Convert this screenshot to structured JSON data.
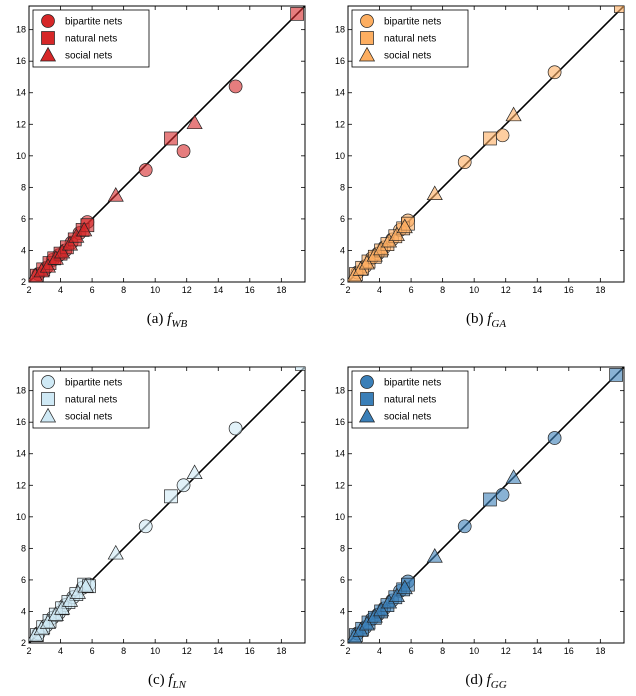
{
  "chart_data": [
    {
      "type": "scatter",
      "caption": {
        "label": "(a)",
        "fn": "f",
        "sub": "WB"
      },
      "xlim": [
        2,
        19.5
      ],
      "ylim": [
        2,
        19.5
      ],
      "xticks": [
        2,
        4,
        6,
        8,
        10,
        12,
        14,
        16,
        18
      ],
      "yticks": [
        2,
        4,
        6,
        8,
        10,
        12,
        14,
        16,
        18
      ],
      "diagonal": true,
      "legend_position": "top-left",
      "colors": {
        "fill": "#d62728",
        "legend_fill": "#d62728"
      },
      "series": [
        {
          "name": "bipartite nets",
          "marker": "circle",
          "points": [
            [
              2.6,
              2.5
            ],
            [
              3.1,
              2.9
            ],
            [
              3.5,
              3.4
            ],
            [
              3.9,
              3.7
            ],
            [
              4.3,
              4.0
            ],
            [
              4.7,
              4.5
            ],
            [
              5.2,
              5.1
            ],
            [
              5.7,
              5.8
            ],
            [
              9.4,
              9.1
            ],
            [
              11.8,
              10.3
            ],
            [
              15.1,
              14.4
            ]
          ]
        },
        {
          "name": "natural nets",
          "marker": "square",
          "points": [
            [
              2.5,
              2.4
            ],
            [
              2.9,
              2.8
            ],
            [
              3.3,
              3.2
            ],
            [
              3.6,
              3.5
            ],
            [
              4.0,
              3.8
            ],
            [
              4.4,
              4.2
            ],
            [
              4.9,
              4.7
            ],
            [
              5.4,
              5.3
            ],
            [
              5.7,
              5.6
            ],
            [
              11.0,
              11.1
            ],
            [
              19.0,
              19.0
            ]
          ]
        },
        {
          "name": "social nets",
          "marker": "triangle",
          "points": [
            [
              2.4,
              2.4
            ],
            [
              2.8,
              2.7
            ],
            [
              3.2,
              3.0
            ],
            [
              3.7,
              3.5
            ],
            [
              4.1,
              3.9
            ],
            [
              4.6,
              4.4
            ],
            [
              5.0,
              4.9
            ],
            [
              5.5,
              5.3
            ],
            [
              7.5,
              7.5
            ],
            [
              12.5,
              12.1
            ]
          ]
        }
      ]
    },
    {
      "type": "scatter",
      "caption": {
        "label": "(b)",
        "fn": "f",
        "sub": "GA"
      },
      "xlim": [
        2,
        19.5
      ],
      "ylim": [
        2,
        19.5
      ],
      "xticks": [
        2,
        4,
        6,
        8,
        10,
        12,
        14,
        16,
        18
      ],
      "yticks": [
        2,
        4,
        6,
        8,
        10,
        12,
        14,
        16,
        18
      ],
      "diagonal": true,
      "legend_position": "top-left",
      "colors": {
        "fill": "#fdae61",
        "legend_fill": "#fdae61"
      },
      "series": [
        {
          "name": "bipartite nets",
          "marker": "circle",
          "points": [
            [
              2.6,
              2.6
            ],
            [
              3.1,
              3.0
            ],
            [
              3.5,
              3.5
            ],
            [
              3.9,
              3.8
            ],
            [
              4.3,
              4.2
            ],
            [
              4.8,
              4.7
            ],
            [
              5.3,
              5.3
            ],
            [
              5.8,
              5.9
            ],
            [
              9.4,
              9.6
            ],
            [
              11.8,
              11.3
            ],
            [
              15.1,
              15.3
            ]
          ]
        },
        {
          "name": "natural nets",
          "marker": "square",
          "points": [
            [
              2.5,
              2.5
            ],
            [
              2.9,
              2.9
            ],
            [
              3.3,
              3.3
            ],
            [
              3.7,
              3.6
            ],
            [
              4.1,
              4.0
            ],
            [
              4.5,
              4.4
            ],
            [
              5.0,
              4.9
            ],
            [
              5.5,
              5.4
            ],
            [
              5.8,
              5.7
            ],
            [
              11.0,
              11.1
            ],
            [
              19.3,
              19.5
            ]
          ]
        },
        {
          "name": "social nets",
          "marker": "triangle",
          "points": [
            [
              2.4,
              2.4
            ],
            [
              2.8,
              2.8
            ],
            [
              3.2,
              3.2
            ],
            [
              3.7,
              3.7
            ],
            [
              4.1,
              4.1
            ],
            [
              4.6,
              4.6
            ],
            [
              5.1,
              5.0
            ],
            [
              5.6,
              5.5
            ],
            [
              7.5,
              7.6
            ],
            [
              12.5,
              12.6
            ]
          ]
        }
      ]
    },
    {
      "type": "scatter",
      "caption": {
        "label": "(c)",
        "fn": "f",
        "sub": "LN"
      },
      "xlim": [
        2,
        19.5
      ],
      "ylim": [
        2,
        19.5
      ],
      "xticks": [
        2,
        4,
        6,
        8,
        10,
        12,
        14,
        16,
        18
      ],
      "yticks": [
        2,
        4,
        6,
        8,
        10,
        12,
        14,
        16,
        18
      ],
      "diagonal": true,
      "legend_position": "top-left",
      "colors": {
        "fill": "#cfe9f5",
        "legend_fill": "#cfe9f5"
      },
      "series": [
        {
          "name": "bipartite nets",
          "marker": "circle",
          "points": [
            [
              2.6,
              2.6
            ],
            [
              3.1,
              3.1
            ],
            [
              3.5,
              3.6
            ],
            [
              3.9,
              3.9
            ],
            [
              4.3,
              4.4
            ],
            [
              4.8,
              4.9
            ],
            [
              5.4,
              5.5
            ],
            [
              5.8,
              5.7
            ],
            [
              9.4,
              9.4
            ],
            [
              11.8,
              12.0
            ],
            [
              15.1,
              15.6
            ]
          ]
        },
        {
          "name": "natural nets",
          "marker": "square",
          "points": [
            [
              2.5,
              2.5
            ],
            [
              2.9,
              3.0
            ],
            [
              3.3,
              3.4
            ],
            [
              3.7,
              3.8
            ],
            [
              4.1,
              4.2
            ],
            [
              4.5,
              4.6
            ],
            [
              5.0,
              5.1
            ],
            [
              5.5,
              5.7
            ],
            [
              5.8,
              5.6
            ],
            [
              11.0,
              11.3
            ],
            [
              19.3,
              19.7
            ]
          ]
        },
        {
          "name": "social nets",
          "marker": "triangle",
          "points": [
            [
              2.4,
              2.5
            ],
            [
              2.8,
              2.9
            ],
            [
              3.2,
              3.3
            ],
            [
              3.7,
              3.8
            ],
            [
              4.1,
              4.2
            ],
            [
              4.6,
              4.7
            ],
            [
              5.1,
              5.2
            ],
            [
              5.6,
              5.6
            ],
            [
              7.5,
              7.7
            ],
            [
              12.5,
              12.8
            ]
          ]
        }
      ]
    },
    {
      "type": "scatter",
      "caption": {
        "label": "(d)",
        "fn": "f",
        "sub": "GG"
      },
      "xlim": [
        2,
        19.5
      ],
      "ylim": [
        2,
        19.5
      ],
      "xticks": [
        2,
        4,
        6,
        8,
        10,
        12,
        14,
        16,
        18
      ],
      "yticks": [
        2,
        4,
        6,
        8,
        10,
        12,
        14,
        16,
        18
      ],
      "diagonal": true,
      "legend_position": "top-left",
      "colors": {
        "fill": "#3a7fb8",
        "legend_fill": "#3a7fb8"
      },
      "series": [
        {
          "name": "bipartite nets",
          "marker": "circle",
          "points": [
            [
              2.6,
              2.6
            ],
            [
              3.1,
              3.0
            ],
            [
              3.5,
              3.5
            ],
            [
              3.9,
              3.8
            ],
            [
              4.3,
              4.2
            ],
            [
              4.8,
              4.7
            ],
            [
              5.3,
              5.3
            ],
            [
              5.8,
              5.9
            ],
            [
              9.4,
              9.4
            ],
            [
              11.8,
              11.4
            ],
            [
              15.1,
              15.0
            ]
          ]
        },
        {
          "name": "natural nets",
          "marker": "square",
          "points": [
            [
              2.5,
              2.5
            ],
            [
              2.9,
              2.9
            ],
            [
              3.3,
              3.3
            ],
            [
              3.7,
              3.6
            ],
            [
              4.1,
              4.0
            ],
            [
              4.5,
              4.4
            ],
            [
              5.0,
              4.9
            ],
            [
              5.5,
              5.4
            ],
            [
              5.8,
              5.7
            ],
            [
              11.0,
              11.1
            ],
            [
              19.0,
              19.0
            ]
          ]
        },
        {
          "name": "social nets",
          "marker": "triangle",
          "points": [
            [
              2.4,
              2.4
            ],
            [
              2.8,
              2.8
            ],
            [
              3.2,
              3.2
            ],
            [
              3.7,
              3.7
            ],
            [
              4.1,
              4.1
            ],
            [
              4.6,
              4.6
            ],
            [
              5.1,
              5.0
            ],
            [
              5.6,
              5.5
            ],
            [
              7.5,
              7.5
            ],
            [
              12.5,
              12.5
            ]
          ]
        }
      ]
    }
  ]
}
